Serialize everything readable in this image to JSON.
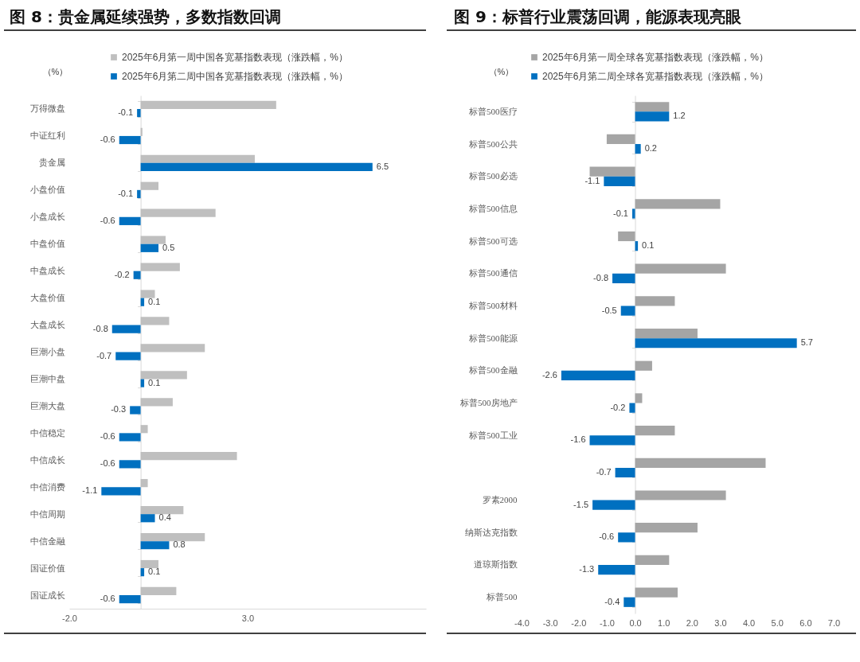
{
  "chart_data": [
    {
      "type": "bar",
      "orientation": "horizontal",
      "title": "图 8：贵金属延续强势，多数指数回调",
      "xlabel": "（%）",
      "categories": [
        "万得微盘",
        "中证红利",
        "贵金属",
        "小盘价值",
        "小盘成长",
        "中盘价值",
        "中盘成长",
        "大盘价值",
        "大盘成长",
        "巨潮小盘",
        "巨潮中盘",
        "巨潮大盘",
        "中信稳定",
        "中信成长",
        "中信消费",
        "中信周期",
        "中信金融",
        "国证价值",
        "国证成长"
      ],
      "series": [
        {
          "name": "2025年6月第一周中国各宽基指数表现（涨跌幅，%）",
          "color": "#bfbfbf",
          "values": [
            3.8,
            0.05,
            3.2,
            0.5,
            2.1,
            0.7,
            1.1,
            0.4,
            0.8,
            1.8,
            1.3,
            0.9,
            0.2,
            2.7,
            0.2,
            1.2,
            1.8,
            0.5,
            1.0
          ]
        },
        {
          "name": "2025年6月第二周中国各宽基指数表现（涨跌幅，%）",
          "color": "#0070c0",
          "values": [
            -0.1,
            -0.6,
            6.5,
            -0.1,
            -0.6,
            0.5,
            -0.2,
            0.1,
            -0.8,
            -0.7,
            0.1,
            -0.3,
            -0.6,
            -0.6,
            -1.1,
            0.4,
            0.8,
            0.1,
            -0.6
          ],
          "value_labels": [
            "-0.1",
            "-0.6",
            "6.5",
            "-0.1",
            "-0.6",
            "0.5",
            "-0.2",
            "0.1",
            "-0.8",
            "-0.7",
            "0.1",
            "-0.3",
            "-0.6",
            "-0.6",
            "-1.1",
            "0.4",
            "0.8",
            "0.1",
            "-0.6"
          ]
        }
      ],
      "xlim": [
        -2,
        8
      ],
      "xticks": [
        {
          "value": -2,
          "label": "-2.0"
        },
        {
          "value": 3,
          "label": "3.0"
        }
      ],
      "legend": "top"
    },
    {
      "type": "bar",
      "orientation": "horizontal",
      "title": "图 9：标普行业震荡回调，能源表现亮眼",
      "xlabel": "（%）",
      "categories": [
        "标普500医疗",
        "标普500公共",
        "标普500必选",
        "标普500信息",
        "标普500可选",
        "标普500通信",
        "标普500材料",
        "标普500能源",
        "标普500金融",
        "标普500房地产",
        "标普500工业",
        null,
        "罗素2000",
        "纳斯达克指数",
        "道琼斯指数",
        "标普500"
      ],
      "series": [
        {
          "name": "2025年6月第一周全球各宽基指数表现（涨跌幅，%）",
          "color": "#a5a5a5",
          "values": [
            1.2,
            -1.0,
            -1.6,
            3.0,
            -0.6,
            3.2,
            1.4,
            2.2,
            0.6,
            0.25,
            1.4,
            4.6,
            3.2,
            2.2,
            1.2,
            1.5
          ]
        },
        {
          "name": "2025年6月第二周全球各宽基指数表现（涨跌幅，%）",
          "color": "#0070c0",
          "values": [
            1.2,
            0.2,
            -1.1,
            -0.1,
            0.1,
            -0.8,
            -0.5,
            5.7,
            -2.6,
            -0.2,
            -1.6,
            -0.7,
            -1.5,
            -0.6,
            -1.3,
            -0.4
          ],
          "value_labels": [
            "1.2",
            "0.2",
            "-1.1",
            "-0.1",
            "0.1",
            "-0.8",
            "-0.5",
            "5.7",
            "-2.6",
            "-0.2",
            "-1.6",
            "-0.7",
            "-1.5",
            "-0.6",
            "-1.3",
            "-0.4"
          ]
        }
      ],
      "xlim": [
        -4,
        7
      ],
      "xticks": [
        {
          "value": -4,
          "label": "-4.0"
        },
        {
          "value": -3,
          "label": "-3.0"
        },
        {
          "value": -2,
          "label": "-2.0"
        },
        {
          "value": -1,
          "label": "-1.0"
        },
        {
          "value": 0,
          "label": "0.0"
        },
        {
          "value": 1,
          "label": "1.0"
        },
        {
          "value": 2,
          "label": "2.0"
        },
        {
          "value": 3,
          "label": "3.0"
        },
        {
          "value": 4,
          "label": "4.0"
        },
        {
          "value": 5,
          "label": "5.0"
        },
        {
          "value": 6,
          "label": "6.0"
        },
        {
          "value": 7,
          "label": "7.0"
        }
      ],
      "legend": "top"
    }
  ]
}
